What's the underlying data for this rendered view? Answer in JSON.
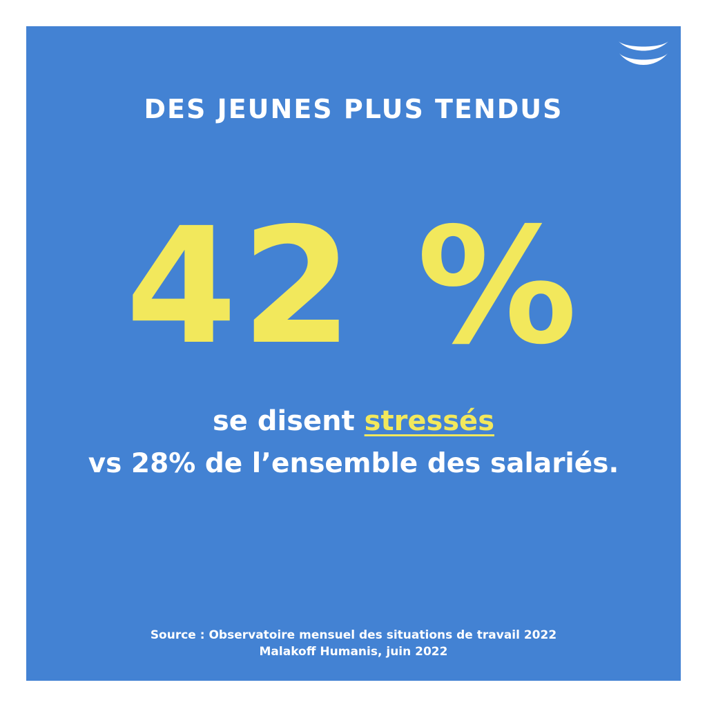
{
  "title": "DES JEUNES PLUS TENDUS",
  "headline": {
    "value": "42",
    "unit": "%"
  },
  "statement": {
    "prefix": "se disent ",
    "highlight": "stressés",
    "comparison": "vs 28% de l’ensemble des salariés."
  },
  "source": {
    "line1": "Source : Observatoire mensuel des situations de travail 2022",
    "line2": "Malakoff Humanis, juin 2022"
  },
  "colors": {
    "background": "#4382d3",
    "accent": "#f2e85c",
    "text": "#ffffff"
  },
  "logo": {
    "icon": "wave-logo-icon"
  }
}
